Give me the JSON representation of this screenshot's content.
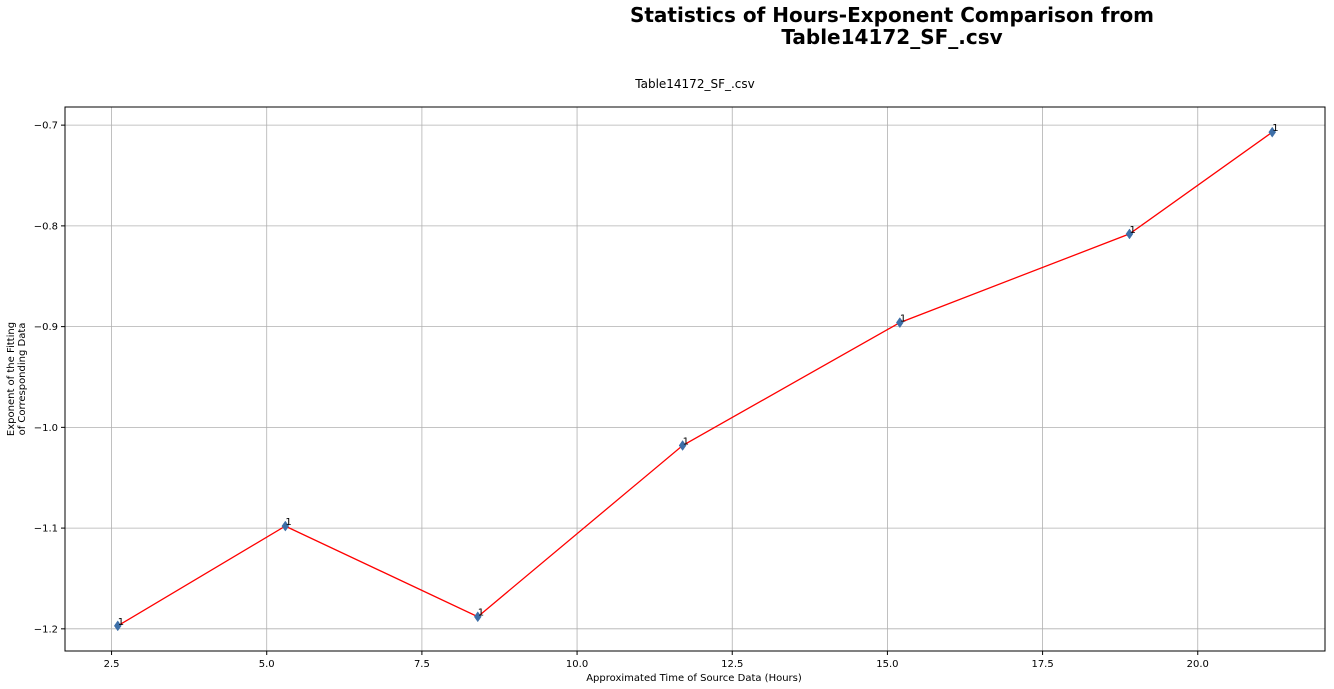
{
  "figure": {
    "suptitle_line1": "Statistics of Hours-Exponent Comparison from",
    "suptitle_line2": "Table14172_SF_.csv"
  },
  "chart_data": {
    "type": "line",
    "title": "Table14172_SF_.csv",
    "xlabel": "Approximated Time of Source Data (Hours)",
    "ylabel_line1": "Exponent of the Fitting",
    "ylabel_line2": "of Corresponding Data",
    "xlim": [
      1.75,
      22.05
    ],
    "ylim": [
      -1.222,
      -0.682
    ],
    "xticks": [
      2.5,
      5.0,
      7.5,
      10.0,
      12.5,
      15.0,
      17.5,
      20.0
    ],
    "xtick_labels": [
      "2.5",
      "5.0",
      "7.5",
      "10.0",
      "12.5",
      "15.0",
      "17.5",
      "20.0"
    ],
    "yticks": [
      -1.2,
      -1.1,
      -1.0,
      -0.9,
      -0.8,
      -0.7
    ],
    "ytick_labels": [
      "−1.2",
      "−1.1",
      "−1.0",
      "−0.9",
      "−0.8",
      "−0.7"
    ],
    "grid": true,
    "series": [
      {
        "x": [
          2.6,
          5.3,
          8.4,
          11.7,
          15.2,
          18.9,
          21.2
        ],
        "y": [
          -1.197,
          -1.098,
          -1.188,
          -1.018,
          -0.896,
          -0.808,
          -0.707
        ],
        "point_labels": [
          "1",
          "1",
          "1",
          "1",
          "1",
          "1",
          "1"
        ],
        "line_color": "#ff0000",
        "marker_color": "#3d6fa8",
        "marker": "diamond"
      }
    ]
  }
}
